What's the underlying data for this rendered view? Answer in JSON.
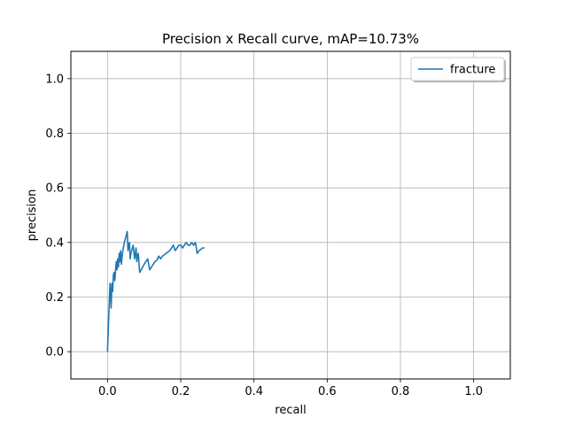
{
  "chart_data": {
    "type": "line",
    "title": "Precision x Recall curve, mAP=10.73%",
    "xlabel": "recall",
    "ylabel": "precision",
    "xlim": [
      -0.1,
      1.1
    ],
    "ylim": [
      -0.1,
      1.1
    ],
    "xticks": [
      0.0,
      0.2,
      0.4,
      0.6,
      0.8,
      1.0
    ],
    "yticks": [
      0.0,
      0.2,
      0.4,
      0.6,
      0.8,
      1.0
    ],
    "xtick_labels": [
      "0.0",
      "0.2",
      "0.4",
      "0.6",
      "0.8",
      "1.0"
    ],
    "ytick_labels": [
      "0.0",
      "0.2",
      "0.4",
      "0.6",
      "0.8",
      "1.0"
    ],
    "grid": true,
    "legend_position": "top-right",
    "series": [
      {
        "name": "fracture",
        "color": "#1f77b4",
        "x": [
          0.0,
          0.004,
          0.007,
          0.01,
          0.012,
          0.014,
          0.016,
          0.018,
          0.02,
          0.022,
          0.024,
          0.026,
          0.028,
          0.03,
          0.032,
          0.034,
          0.036,
          0.038,
          0.04,
          0.042,
          0.046,
          0.05,
          0.054,
          0.056,
          0.058,
          0.06,
          0.062,
          0.064,
          0.066,
          0.07,
          0.074,
          0.076,
          0.078,
          0.08,
          0.082,
          0.084,
          0.088,
          0.1,
          0.11,
          0.115,
          0.12,
          0.125,
          0.13,
          0.135,
          0.14,
          0.145,
          0.15,
          0.16,
          0.17,
          0.175,
          0.18,
          0.185,
          0.19,
          0.195,
          0.2,
          0.205,
          0.21,
          0.215,
          0.22,
          0.225,
          0.23,
          0.235,
          0.24,
          0.245,
          0.25,
          0.255,
          0.26,
          0.265
        ],
        "y": [
          0.0,
          0.15,
          0.25,
          0.16,
          0.25,
          0.22,
          0.28,
          0.29,
          0.26,
          0.3,
          0.33,
          0.3,
          0.34,
          0.31,
          0.36,
          0.33,
          0.37,
          0.32,
          0.35,
          0.37,
          0.4,
          0.42,
          0.44,
          0.37,
          0.39,
          0.4,
          0.34,
          0.36,
          0.37,
          0.39,
          0.34,
          0.36,
          0.38,
          0.33,
          0.35,
          0.36,
          0.29,
          0.32,
          0.34,
          0.3,
          0.31,
          0.32,
          0.33,
          0.335,
          0.35,
          0.34,
          0.35,
          0.36,
          0.37,
          0.38,
          0.39,
          0.37,
          0.38,
          0.39,
          0.39,
          0.38,
          0.39,
          0.4,
          0.39,
          0.39,
          0.4,
          0.39,
          0.4,
          0.36,
          0.37,
          0.375,
          0.38,
          0.38
        ]
      }
    ]
  }
}
